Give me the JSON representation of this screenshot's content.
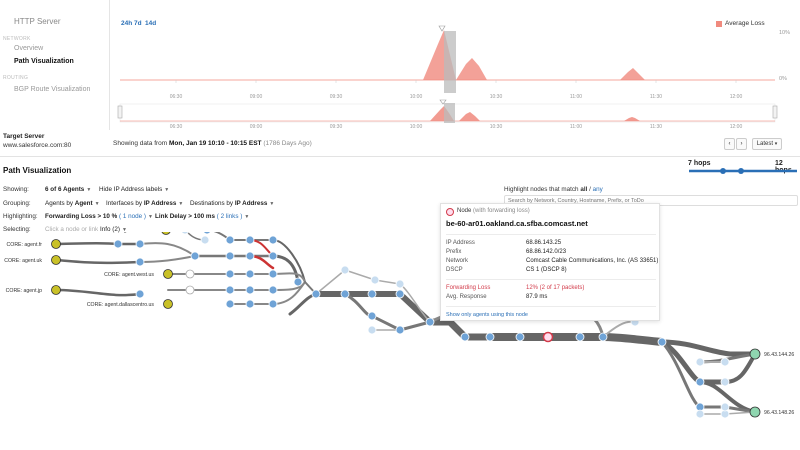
{
  "sidebar": {
    "title": "HTTP Server",
    "network_section": "NETWORK",
    "overview": "Overview",
    "path_visualization": "Path Visualization",
    "routing_section": "ROUTING",
    "bgp": "BGP Route Visualization"
  },
  "target": {
    "label": "Target Server",
    "url": "www.salesforce.com:80"
  },
  "timeline": {
    "ranges": [
      "24h",
      "7d",
      "14d"
    ],
    "legend": "Average Loss",
    "y_max": "10%",
    "y_min": "0%",
    "ticks": [
      "06:30",
      "09:00",
      "09:30",
      "10:00",
      "10:30",
      "11:00",
      "11:30",
      "12:00"
    ],
    "showing_prefix": "Showing data from",
    "showing_range": "Mon, Jan 19 10:10 - 10:15 EST",
    "showing_suffix": "(1786 Days Ago)",
    "prev": "‹",
    "next": "›",
    "latest": "Latest"
  },
  "path": {
    "title": "Path Visualization",
    "hops_min": "7 hops",
    "hops_max": "12 hops",
    "showing_label": "Showing:",
    "showing_value": "6 of 6 Agents",
    "hide_ip": "Hide IP Address labels",
    "grouping_label": "Grouping:",
    "grouping_agents_prefix": "Agents by",
    "grouping_agents": "Agent",
    "grouping_interfaces_prefix": "Interfaces by",
    "grouping_interfaces": "IP Address",
    "grouping_dest_prefix": "Destinations by",
    "grouping_dest": "IP Address",
    "highlighting_label": "Highlighting:",
    "fwd_loss": "Forwarding Loss > 10 %",
    "fwd_loss_count": "( 1 node )",
    "link_delay": "Link Delay > 100 ms",
    "link_delay_count": "( 2 links )",
    "selecting_label": "Selecting:",
    "selecting_hint": "Click a node or link",
    "info": "Info (2)",
    "highlight_prefix": "Highlight nodes that match",
    "highlight_all": "all",
    "highlight_sep": "/",
    "highlight_any": "any",
    "search_placeholder": "Search by Network, Country, Hostname, Prefix, or ToDo"
  },
  "agents": [
    "CORE: agent.fr",
    "CORE: agent.uk",
    "CORE: agent.east.us",
    "CORE: agent.west.us",
    "CORE: agent.jp",
    "CORE: agent.dallascentro.us"
  ],
  "destinations": [
    "96.43.144.26",
    "96.43.148.26"
  ],
  "tooltip": {
    "node_label": "Node",
    "node_note": "(with forwarding loss)",
    "hostname": "be-60-ar01.oakland.ca.sfba.comcast.net",
    "rows": [
      {
        "label": "IP Address",
        "value": "68.86.143.25"
      },
      {
        "label": "Prefix",
        "value": "68.86.142.0/23"
      },
      {
        "label": "Network",
        "value": "Comcast Cable Communications, Inc. (AS 33651)"
      },
      {
        "label": "DSCP",
        "value": "CS 1 (DSCP 8)"
      }
    ],
    "fwd_loss_label": "Forwarding Loss",
    "fwd_loss_value": "12% (2 of 17 packets)",
    "avg_resp_label": "Avg. Response",
    "avg_resp_value": "87.9 ms",
    "show_agents": "Show only agents using this node"
  },
  "colors": {
    "accent": "#2a6fb6",
    "loss": "#f08a7e",
    "node_blue": "#6fa3d6",
    "node_light": "#c8ddf0",
    "agent_yellow": "#c9c127",
    "dest_green": "#8fd6b0",
    "alert": "#d23b4a"
  },
  "icons": {
    "node_ring": "node-ring-icon",
    "caret": "caret-down-icon"
  }
}
